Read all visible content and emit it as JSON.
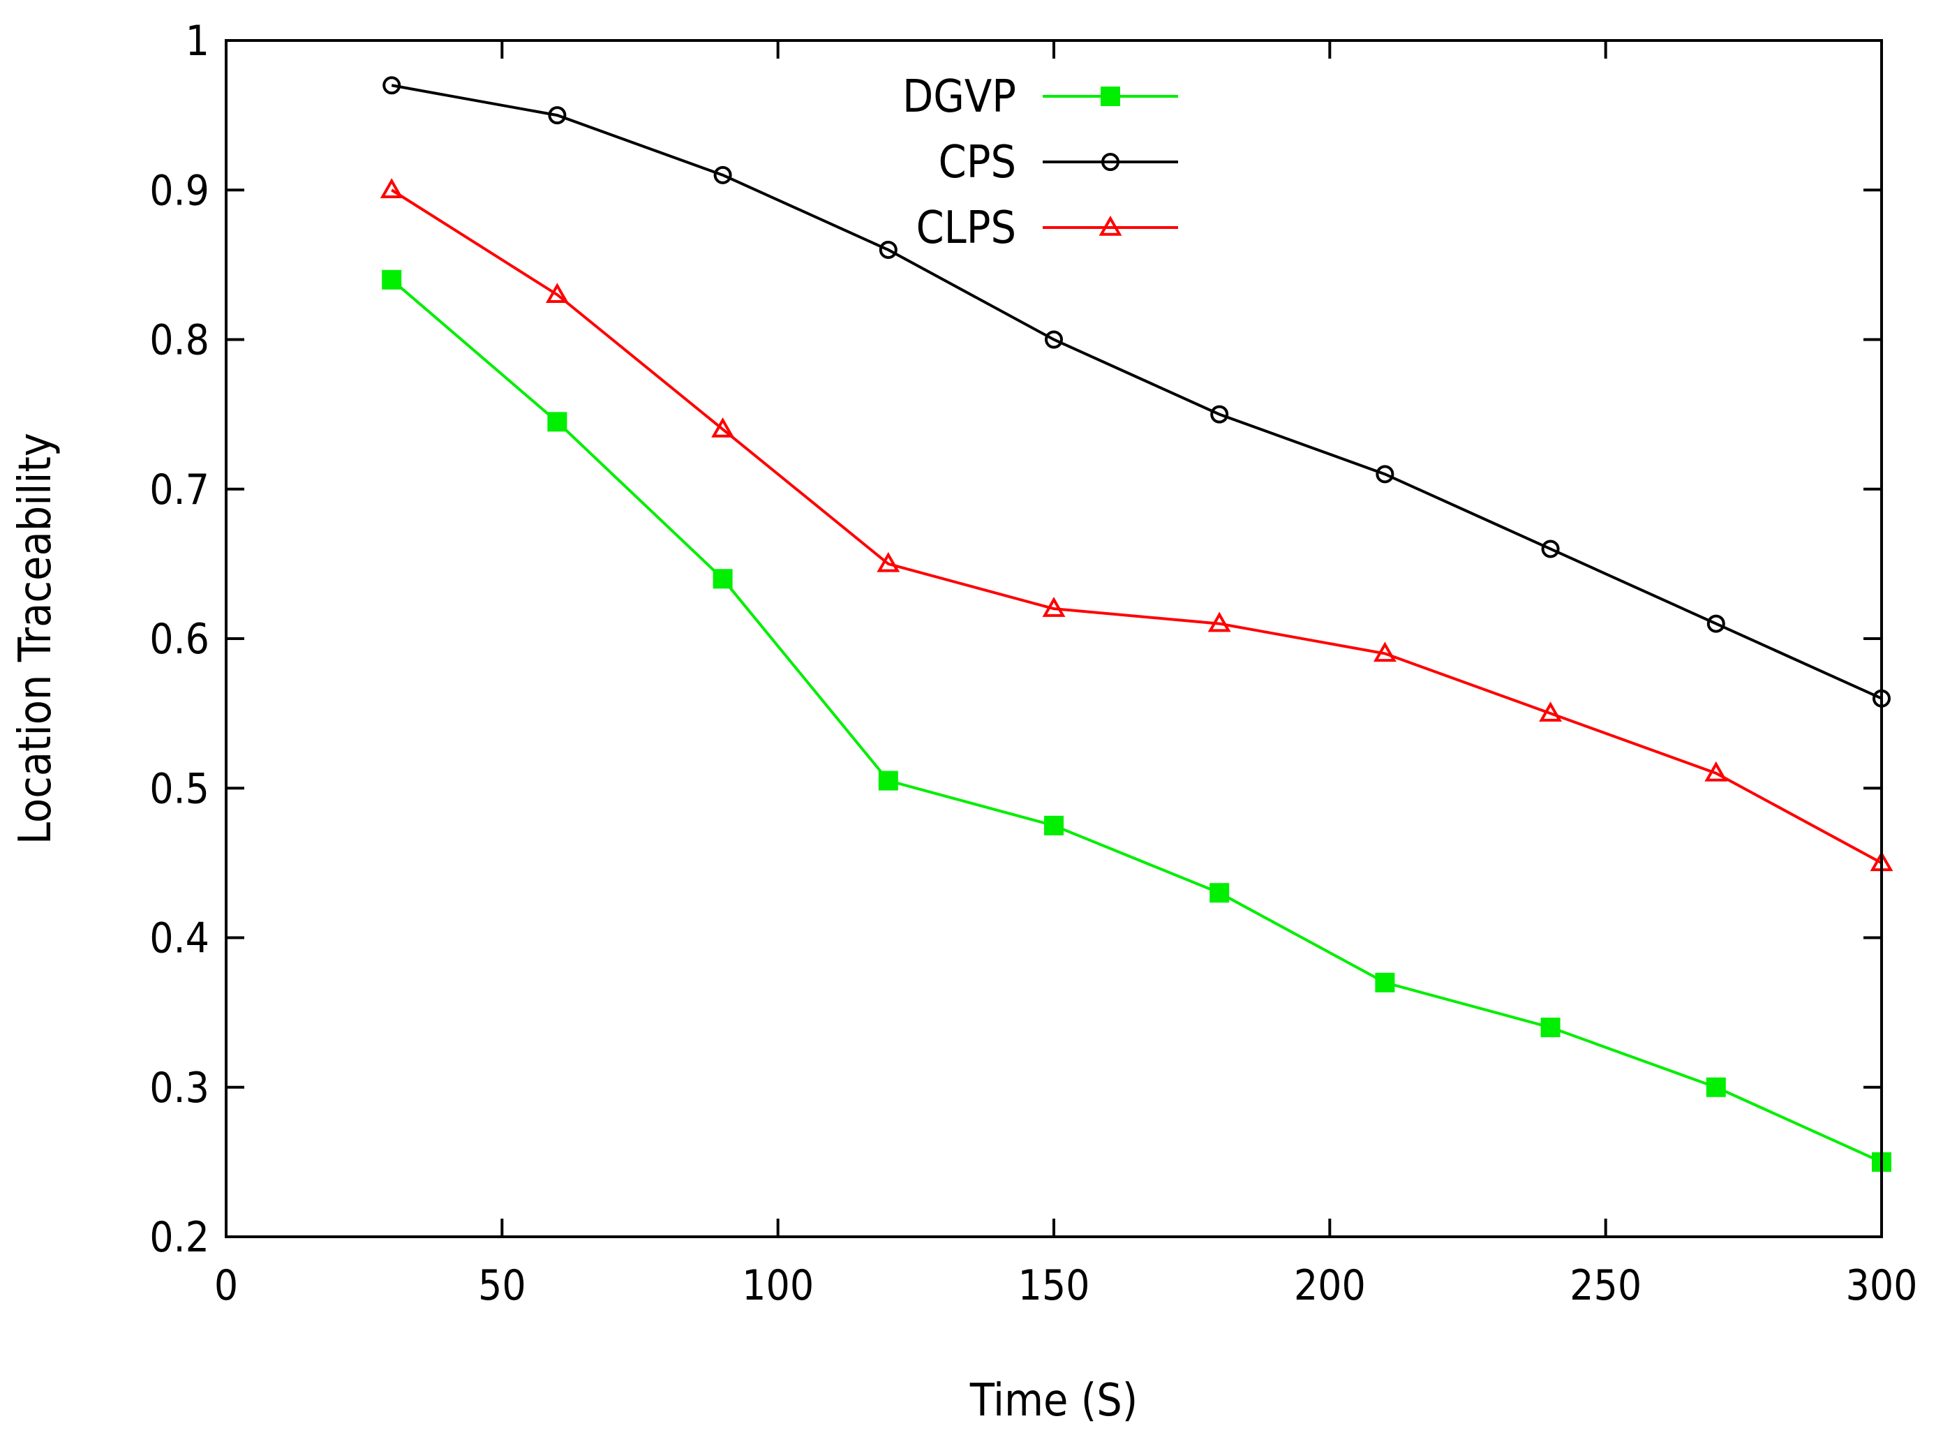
{
  "chart_data": {
    "type": "line",
    "title": "",
    "xlabel": "Time (S)",
    "ylabel": "Location Traceability",
    "xlim": [
      0,
      300
    ],
    "ylim": [
      0.2,
      1.0
    ],
    "x_ticks": [
      0,
      50,
      100,
      150,
      200,
      250,
      300
    ],
    "x_tick_labels": [
      "0",
      "50",
      "100",
      "150",
      "200",
      "250",
      "300"
    ],
    "y_ticks": [
      0.2,
      0.3,
      0.4,
      0.5,
      0.6,
      0.7,
      0.8,
      0.9,
      1.0
    ],
    "y_tick_labels": [
      "0.2",
      "0.3",
      "0.4",
      "0.5",
      "0.6",
      "0.7",
      "0.8",
      "0.9",
      "1"
    ],
    "grid": false,
    "legend_position": "top-center",
    "x": [
      30,
      60,
      90,
      120,
      150,
      180,
      210,
      240,
      270,
      300
    ],
    "series": [
      {
        "name": "DGVP",
        "color": "#00ee00",
        "marker": "filled-square",
        "values": [
          0.84,
          0.745,
          0.64,
          0.505,
          0.475,
          0.43,
          0.37,
          0.34,
          0.3,
          0.25
        ]
      },
      {
        "name": "CPS",
        "color": "#000000",
        "marker": "open-circle",
        "values": [
          0.97,
          0.95,
          0.91,
          0.86,
          0.8,
          0.75,
          0.71,
          0.66,
          0.61,
          0.56
        ]
      },
      {
        "name": "CLPS",
        "color": "#ff0000",
        "marker": "open-triangle",
        "values": [
          0.9,
          0.83,
          0.74,
          0.65,
          0.62,
          0.61,
          0.59,
          0.55,
          0.51,
          0.45
        ]
      }
    ]
  }
}
